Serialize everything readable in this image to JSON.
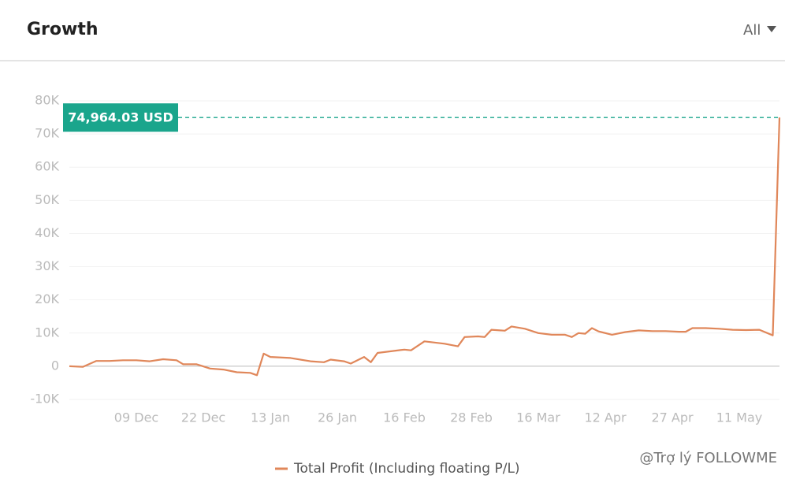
{
  "header": {
    "title": "Growth",
    "filter": "All"
  },
  "chart_data": {
    "type": "line",
    "series": [
      {
        "name": "Total Profit (Including floating P/L)",
        "color": "#e0875a",
        "x": [
          0,
          2,
          4,
          6,
          8,
          10,
          12,
          14,
          16,
          17,
          19,
          21,
          23,
          25,
          27,
          28,
          29,
          30,
          33,
          36,
          38,
          39,
          41,
          42,
          44,
          45,
          46,
          48,
          50,
          51,
          53,
          56,
          58,
          59,
          61,
          62,
          63,
          65,
          66,
          68,
          70,
          72,
          74,
          75,
          76,
          77,
          78,
          79,
          81,
          83,
          85,
          87,
          89,
          91,
          92,
          93,
          95,
          97,
          99,
          101,
          103,
          105,
          106
        ],
        "values": [
          0,
          -200,
          1600,
          1600,
          1800,
          1800,
          1500,
          2100,
          1800,
          600,
          600,
          -700,
          -1000,
          -1800,
          -2000,
          -2700,
          3800,
          2800,
          2500,
          1500,
          1200,
          2000,
          1500,
          800,
          2800,
          1200,
          4000,
          4500,
          5000,
          4800,
          7500,
          6800,
          6000,
          8800,
          9000,
          8800,
          11000,
          10700,
          12000,
          11300,
          10000,
          9500,
          9500,
          8800,
          10000,
          9800,
          11500,
          10500,
          9500,
          10300,
          10800,
          10600,
          10600,
          10400,
          10400,
          11500,
          11500,
          11300,
          11000,
          10900,
          11000,
          9300,
          74964.03
        ]
      }
    ],
    "annotation": {
      "value": 74964.03,
      "label": "74,964.03 USD",
      "color": "#1aa58c"
    },
    "xlim": [
      0,
      106
    ],
    "xticks": [
      {
        "value": 10,
        "label": "09 Dec"
      },
      {
        "value": 20,
        "label": "22 Dec"
      },
      {
        "value": 30,
        "label": "13 Jan"
      },
      {
        "value": 40,
        "label": "26 Jan"
      },
      {
        "value": 50,
        "label": "16 Feb"
      },
      {
        "value": 60,
        "label": "28 Feb"
      },
      {
        "value": 70,
        "label": "16 Mar"
      },
      {
        "value": 80,
        "label": "12 Apr"
      },
      {
        "value": 90,
        "label": "27 Apr"
      },
      {
        "value": 100,
        "label": "11 May"
      }
    ],
    "ylim": [
      -10000,
      80000
    ],
    "yticks": [
      {
        "value": 80000,
        "label": "80K"
      },
      {
        "value": 70000,
        "label": "70K"
      },
      {
        "value": 60000,
        "label": "60K"
      },
      {
        "value": 50000,
        "label": "50K"
      },
      {
        "value": 40000,
        "label": "40K"
      },
      {
        "value": 30000,
        "label": "30K"
      },
      {
        "value": 20000,
        "label": "20K"
      },
      {
        "value": 10000,
        "label": "10K"
      },
      0,
      {
        "value": -10000,
        "label": "-10K"
      }
    ],
    "grid": true,
    "legend": "bottom"
  },
  "watermark": "@Trợ lý FOLLOWME"
}
